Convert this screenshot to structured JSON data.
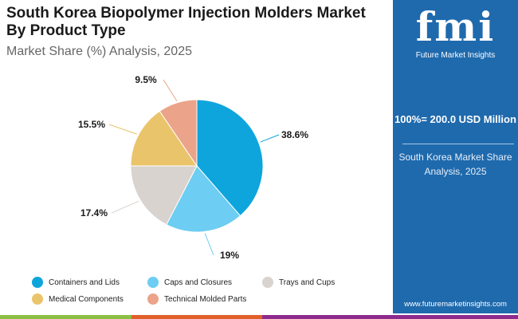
{
  "title": "South Korea Biopolymer Injection Molders Market By Product Type",
  "subtitle": "Market Share (%) Analysis, 2025",
  "panel": {
    "logo_text": "fmi",
    "logo_sub": "Future Market Insights",
    "total": "100%= 200.0 USD Million",
    "share": "South Korea Market Share Analysis, 2025",
    "url": "www.futuremarketinsights.com"
  },
  "colors": {
    "panel": "#1f6aad",
    "bar": [
      "#8bbf44",
      "#e0602a",
      "#8e2c8e"
    ]
  },
  "chart_data": {
    "type": "pie",
    "title": "South Korea Biopolymer Injection Molders Market By Product Type",
    "categories": [
      "Containers and Lids",
      "Caps and Closures",
      "Trays and Cups",
      "Medical Components",
      "Technical Molded Parts"
    ],
    "values": [
      38.6,
      19,
      17.4,
      15.5,
      9.5
    ],
    "labels": [
      "38.6%",
      "19%",
      "17.4%",
      "15.5%",
      "9.5%"
    ],
    "colors": [
      "#0ea5dd",
      "#6dcdf2",
      "#d9d3cf",
      "#eac46a",
      "#eba38a"
    ],
    "legend_position": "bottom"
  }
}
